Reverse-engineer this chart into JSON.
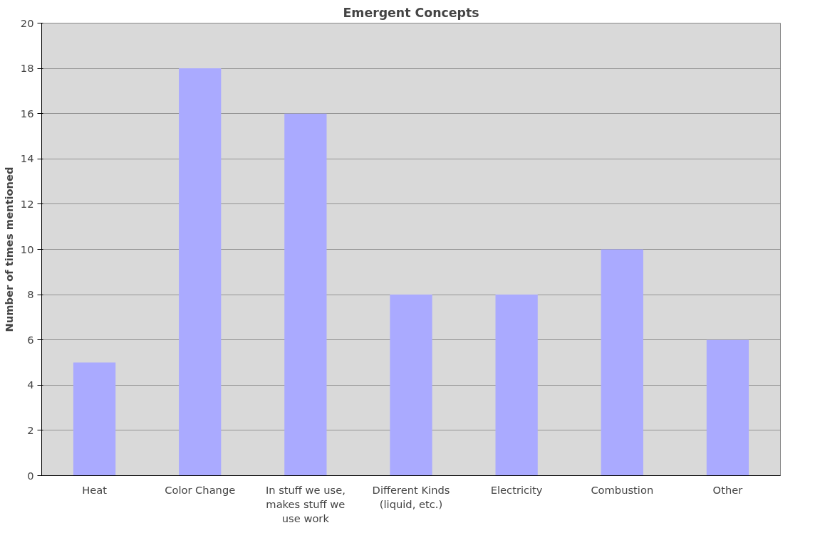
{
  "chart_data": {
    "type": "bar",
    "title": "Emergent Concepts",
    "ylabel": "Number of times mentioned",
    "categories": [
      "Heat",
      "Color Change",
      "In stuff we use, makes stuff we use work",
      "Different Kinds (liquid, etc.)",
      "Electricity",
      "Combustion",
      "Other"
    ],
    "values": [
      5,
      18,
      16,
      8,
      8,
      10,
      6
    ],
    "color": "#aaaaff",
    "ylim": [
      0,
      20
    ],
    "yticks": [
      0,
      2,
      4,
      6,
      8,
      10,
      12,
      14,
      16,
      18,
      20
    ],
    "grid": "y"
  }
}
